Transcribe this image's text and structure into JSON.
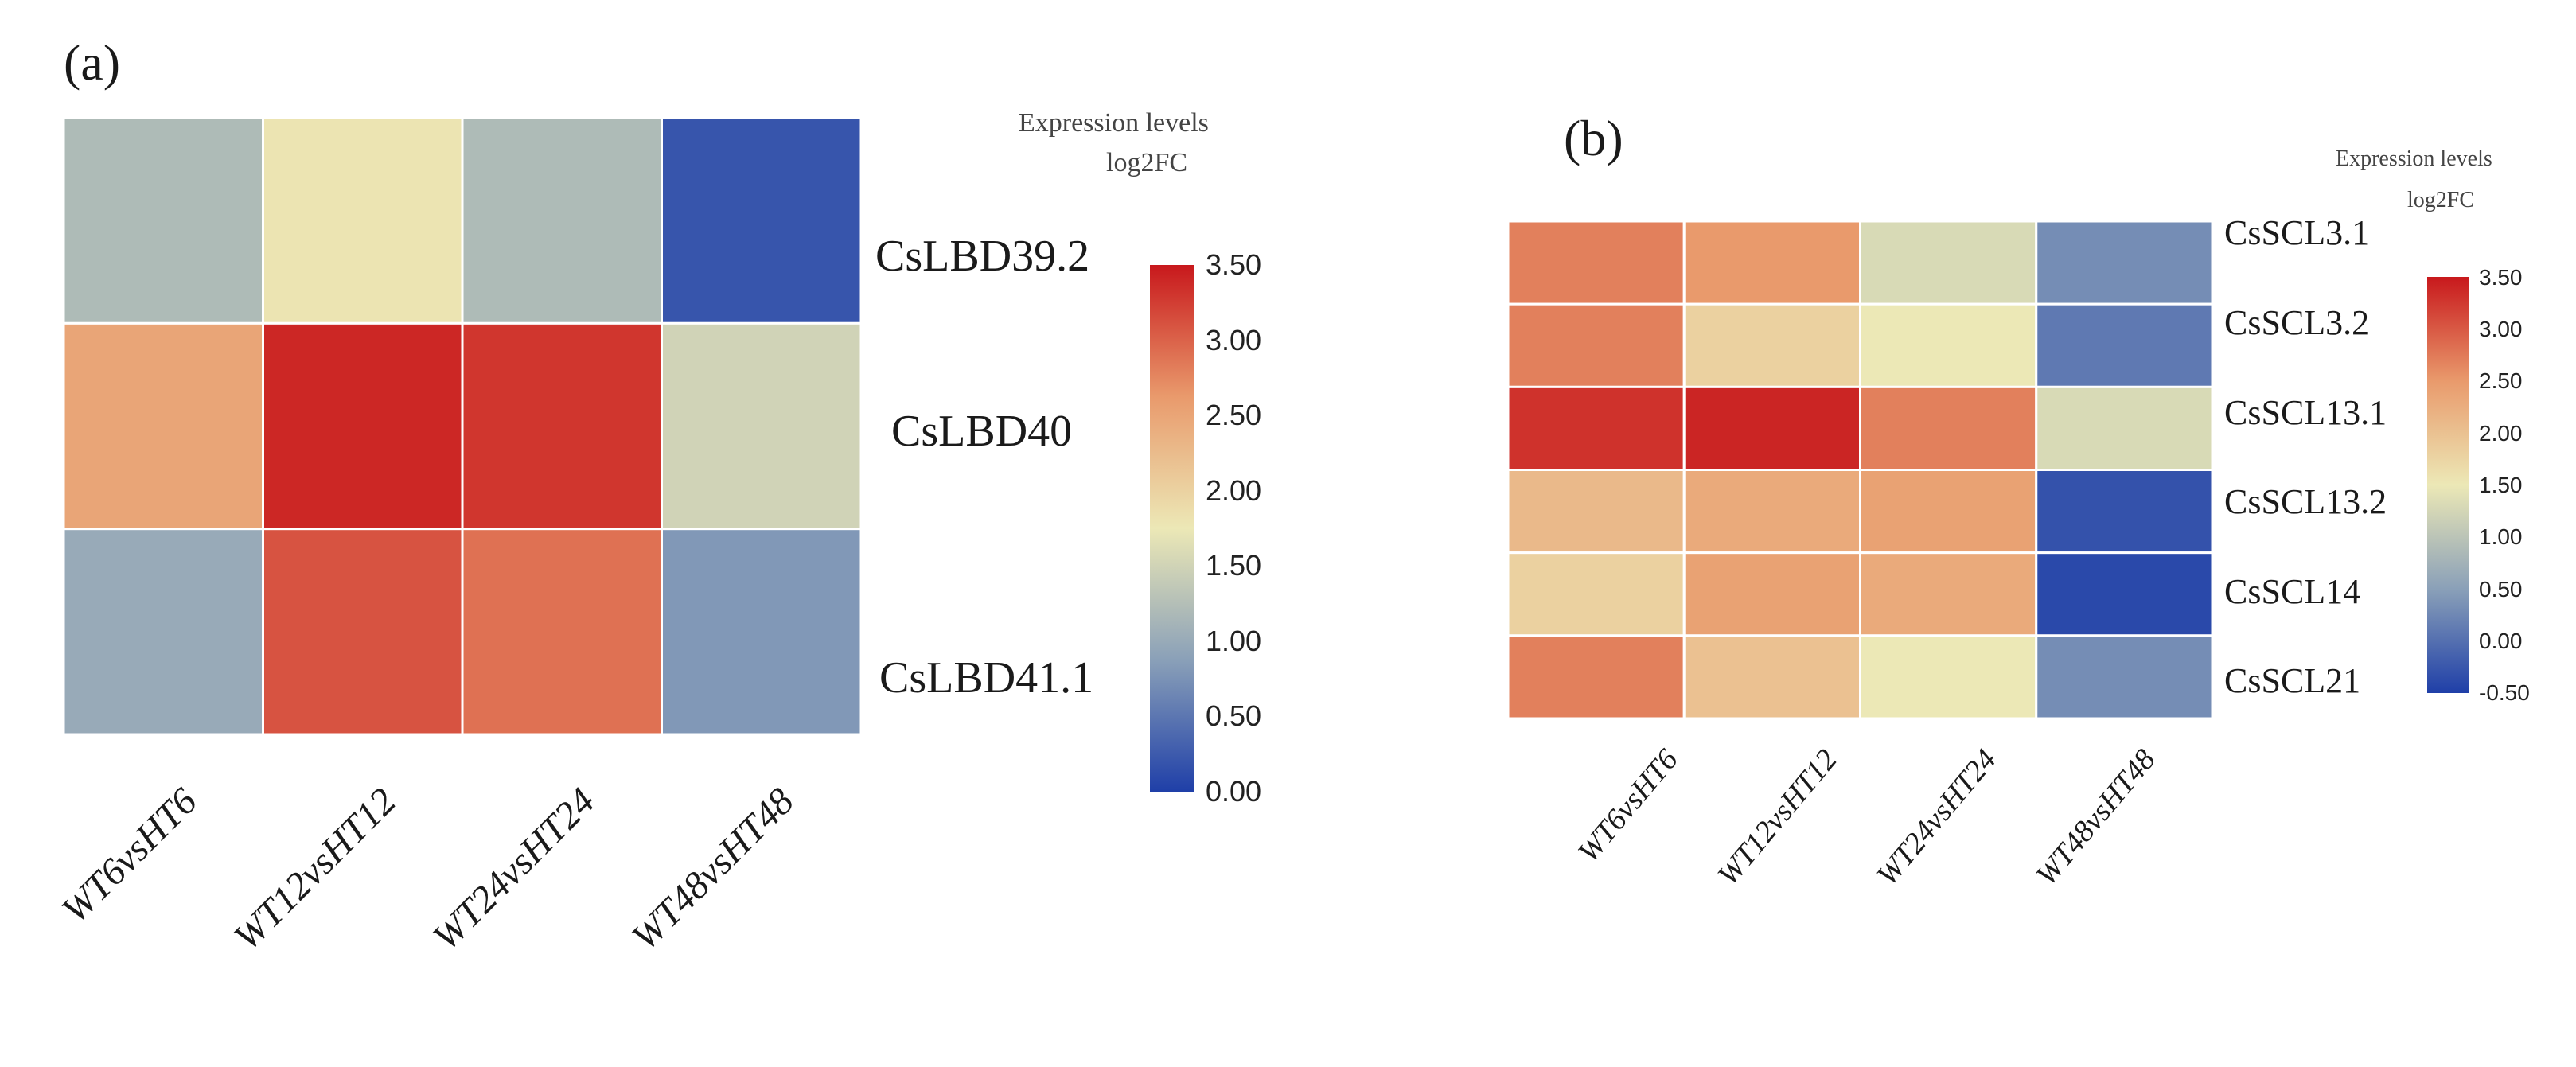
{
  "chart_data": [
    {
      "type": "heatmap",
      "panel_label": "(a)",
      "legend_title_line1": "Expression levels",
      "legend_title_line2": "log2FC",
      "columns": [
        "WT6vsHT6",
        "WT12vsHT12",
        "WT24vsHT24",
        "WT48vsHT48"
      ],
      "rows": [
        "CsLBD39.2",
        "CsLBD40",
        "CsLBD41.1"
      ],
      "values": [
        [
          1.2,
          1.8,
          1.2,
          0.2
        ],
        [
          2.5,
          3.4,
          3.3,
          1.5
        ],
        [
          1.0,
          3.1,
          2.9,
          0.8
        ]
      ],
      "color_range": [
        0.0,
        3.5
      ],
      "colorbar_ticks": [
        "3.50",
        "3.00",
        "2.50",
        "2.00",
        "1.50",
        "1.00",
        "0.50",
        "0.00"
      ],
      "colorbar_tick_values": [
        3.5,
        3.0,
        2.5,
        2.0,
        1.5,
        1.0,
        0.5,
        0.0
      ]
    },
    {
      "type": "heatmap",
      "panel_label": "(b)",
      "legend_title_line1": "Expression levels",
      "legend_title_line2": "log2FC",
      "columns": [
        "WT6vsHT6",
        "WT12vsHT12",
        "WT24vsHT24",
        "WT48vsHT48"
      ],
      "rows": [
        "CsSCL3.1",
        "CsSCL3.2",
        "CsSCL13.1",
        "CsSCL13.2",
        "CsSCL14",
        "CsSCL21"
      ],
      "values": [
        [
          2.7,
          2.5,
          1.3,
          0.3
        ],
        [
          2.7,
          1.8,
          1.5,
          0.1
        ],
        [
          3.3,
          3.4,
          2.7,
          1.3
        ],
        [
          2.1,
          2.3,
          2.4,
          -0.3
        ],
        [
          1.8,
          2.4,
          2.3,
          -0.4
        ],
        [
          2.7,
          2.0,
          1.5,
          0.3
        ]
      ],
      "color_range": [
        -0.5,
        3.5
      ],
      "colorbar_ticks": [
        "3.50",
        "3.00",
        "2.50",
        "2.00",
        "1.50",
        "1.00",
        "0.50",
        "0.00",
        "-0.50"
      ],
      "colorbar_tick_values": [
        3.5,
        3.0,
        2.5,
        2.0,
        1.5,
        1.0,
        0.5,
        0.0,
        -0.5
      ]
    }
  ],
  "colors": {
    "scale_low": "#1f3fa8",
    "scale_mid_low": "#8aa0b8",
    "scale_mid": "#ece8b6",
    "scale_mid_high": "#e99a6c",
    "scale_high": "#c8181c",
    "cell_border": "#ffffff"
  }
}
